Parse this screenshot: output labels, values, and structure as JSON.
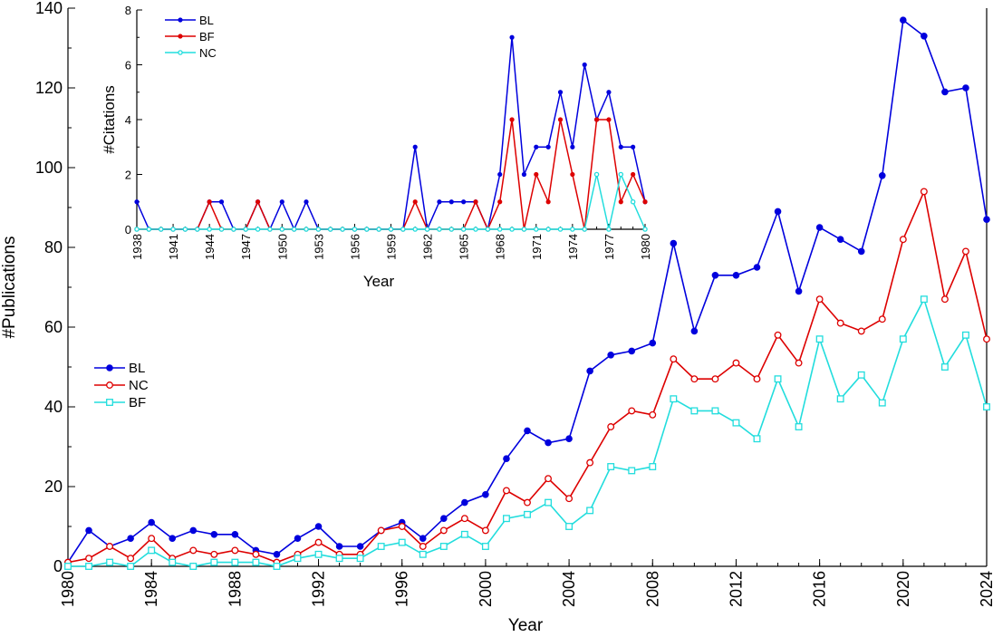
{
  "chart_data": [
    {
      "id": "main",
      "type": "line",
      "xlabel": "Year",
      "ylabel": "#Publications",
      "xlim": [
        1980,
        2024
      ],
      "ylim": [
        0,
        140
      ],
      "x_ticks": [
        "1980",
        "1984",
        "1988",
        "1992",
        "1996",
        "2000",
        "2004",
        "2008",
        "2012",
        "2016",
        "2020",
        "2024"
      ],
      "y_ticks": [
        "0",
        "20",
        "40",
        "60",
        "80",
        "100",
        "120",
        "140"
      ],
      "legend_position": "left-middle",
      "x": [
        1980,
        1981,
        1982,
        1983,
        1984,
        1985,
        1986,
        1987,
        1988,
        1989,
        1990,
        1991,
        1992,
        1993,
        1994,
        1995,
        1996,
        1997,
        1998,
        1999,
        2000,
        2001,
        2002,
        2003,
        2004,
        2005,
        2006,
        2007,
        2008,
        2009,
        2010,
        2011,
        2012,
        2013,
        2014,
        2015,
        2016,
        2017,
        2018,
        2019,
        2020,
        2021,
        2022,
        2023,
        2024
      ],
      "series": [
        {
          "name": "BL",
          "color": "#0000dd",
          "marker": "filled-circle",
          "values": [
            1,
            9,
            5,
            7,
            11,
            7,
            9,
            8,
            8,
            4,
            3,
            7,
            10,
            5,
            5,
            9,
            11,
            7,
            12,
            16,
            18,
            27,
            34,
            31,
            32,
            49,
            53,
            54,
            56,
            81,
            59,
            73,
            73,
            75,
            89,
            69,
            85,
            82,
            79,
            98,
            137,
            133,
            119,
            120,
            87
          ]
        },
        {
          "name": "NC",
          "color": "#dd0000",
          "marker": "open-circle",
          "values": [
            1,
            2,
            5,
            2,
            7,
            2,
            4,
            3,
            4,
            3,
            1,
            3,
            6,
            3,
            3,
            9,
            10,
            5,
            9,
            12,
            9,
            19,
            16,
            22,
            17,
            26,
            35,
            39,
            38,
            52,
            47,
            47,
            51,
            47,
            58,
            51,
            67,
            61,
            59,
            62,
            82,
            94,
            67,
            79,
            57
          ]
        },
        {
          "name": "BF",
          "color": "#22dddd",
          "marker": "open-square",
          "values": [
            0,
            0,
            1,
            0,
            4,
            1,
            0,
            1,
            1,
            1,
            0,
            2,
            3,
            2,
            2,
            5,
            6,
            3,
            5,
            8,
            5,
            12,
            13,
            16,
            10,
            14,
            25,
            24,
            25,
            42,
            39,
            39,
            36,
            32,
            47,
            35,
            57,
            42,
            48,
            41,
            57,
            67,
            50,
            58,
            40
          ]
        }
      ]
    },
    {
      "id": "inset",
      "type": "line",
      "xlabel": "Year",
      "ylabel": "#Citations",
      "xlim": [
        1938,
        1980
      ],
      "ylim": [
        0,
        8
      ],
      "x_ticks": [
        "1938",
        "1941",
        "1944",
        "1947",
        "1950",
        "1953",
        "1956",
        "1959",
        "1962",
        "1965",
        "1968",
        "1971",
        "1974",
        "1977",
        "1980"
      ],
      "y_ticks": [
        "0",
        "2",
        "4",
        "6",
        "8"
      ],
      "legend_position": "top-left",
      "x": [
        1938,
        1939,
        1940,
        1941,
        1942,
        1943,
        1944,
        1945,
        1946,
        1947,
        1948,
        1949,
        1950,
        1951,
        1952,
        1953,
        1954,
        1955,
        1956,
        1957,
        1958,
        1959,
        1960,
        1961,
        1962,
        1963,
        1964,
        1965,
        1966,
        1967,
        1968,
        1969,
        1970,
        1971,
        1972,
        1973,
        1974,
        1975,
        1976,
        1977,
        1978,
        1979,
        1980
      ],
      "series": [
        {
          "name": "BL",
          "color": "#0000dd",
          "marker": "filled-dot",
          "values": [
            1,
            0,
            0,
            0,
            0,
            0,
            1,
            1,
            0,
            0,
            1,
            0,
            1,
            0,
            1,
            0,
            0,
            0,
            0,
            0,
            0,
            0,
            0,
            3,
            0,
            1,
            1,
            1,
            1,
            0,
            2,
            7,
            2,
            3,
            3,
            5,
            3,
            6,
            4,
            5,
            3,
            3,
            1
          ]
        },
        {
          "name": "BF",
          "color": "#dd0000",
          "marker": "filled-dot",
          "values": [
            0,
            0,
            0,
            0,
            0,
            0,
            1,
            0,
            0,
            0,
            1,
            0,
            0,
            0,
            0,
            0,
            0,
            0,
            0,
            0,
            0,
            0,
            0,
            1,
            0,
            0,
            0,
            0,
            1,
            0,
            1,
            4,
            0,
            2,
            1,
            4,
            2,
            0,
            4,
            4,
            1,
            2,
            1
          ]
        },
        {
          "name": "NC",
          "color": "#22dddd",
          "marker": "open-circle",
          "values": [
            0,
            0,
            0,
            0,
            0,
            0,
            0,
            0,
            0,
            0,
            0,
            0,
            0,
            0,
            0,
            0,
            0,
            0,
            0,
            0,
            0,
            0,
            0,
            0,
            0,
            0,
            0,
            0,
            0,
            0,
            0,
            0,
            0,
            0,
            0,
            0,
            0,
            0,
            2,
            0,
            2,
            1,
            0
          ]
        }
      ]
    }
  ]
}
